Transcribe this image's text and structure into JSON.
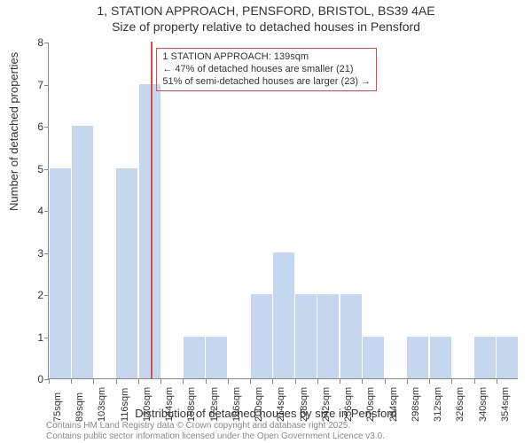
{
  "title": {
    "line1": "1, STATION APPROACH, PENSFORD, BRISTOL, BS39 4AE",
    "line2": "Size of property relative to detached houses in Pensford"
  },
  "chart": {
    "type": "histogram",
    "background_color": "#ffffff",
    "bar_color": "#c5d6ef",
    "bar_border_color": "#c5d6ef",
    "marker_color": "#d94a49",
    "annot_border_color": "#d94a49",
    "axis_color": "#888888",
    "text_color": "#333333",
    "ylabel": "Number of detached properties",
    "xlabel": "Distribution of detached houses by size in Pensford",
    "ylim": [
      0,
      8
    ],
    "ytick_step": 1,
    "xticks": [
      "75sqm",
      "89sqm",
      "103sqm",
      "116sqm",
      "130sqm",
      "144sqm",
      "158sqm",
      "172sqm",
      "186sqm",
      "200sqm",
      "214sqm",
      "228sqm",
      "242sqm",
      "256sqm",
      "270sqm",
      "284sqm",
      "298sqm",
      "312sqm",
      "326sqm",
      "340sqm",
      "354sqm"
    ],
    "bars": [
      5,
      6,
      0,
      5,
      7,
      0,
      1,
      1,
      0,
      2,
      3,
      2,
      2,
      2,
      1,
      0,
      1,
      1,
      0,
      1,
      1
    ],
    "marker_x_sqm": 139,
    "x_start_sqm": 75,
    "x_step_sqm": 14,
    "bar_rel_width": 0.95,
    "annotation": {
      "line1": "1 STATION APPROACH: 139sqm",
      "line2": "← 47% of detached houses are smaller (21)",
      "line3": "51% of semi-detached houses are larger (23) →"
    }
  },
  "attribution": {
    "line1": "Contains HM Land Registry data © Crown copyright and database right 2025.",
    "line2": "Contains public sector information licensed under the Open Government Licence v3.0."
  }
}
